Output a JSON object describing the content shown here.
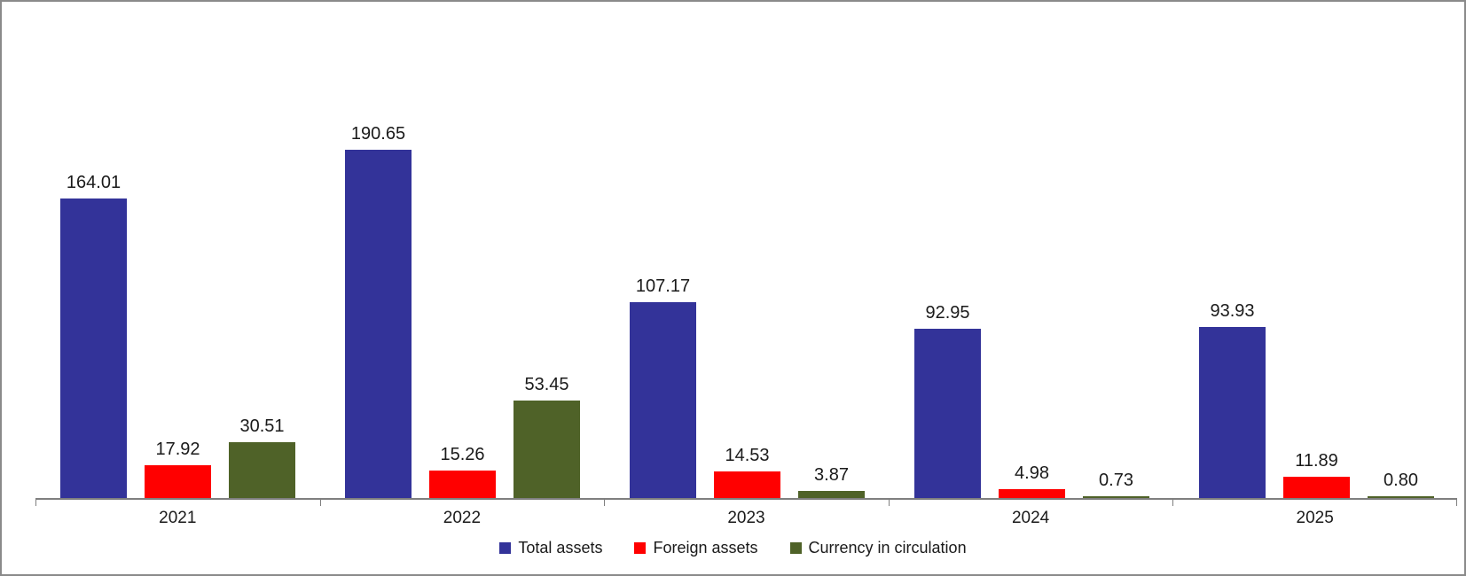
{
  "chart_data": {
    "type": "bar",
    "categories": [
      "2021",
      "2022",
      "2023",
      "2024",
      "2025"
    ],
    "series": [
      {
        "name": "Total assets",
        "color": "#333399",
        "values": [
          164.01,
          190.65,
          107.17,
          92.95,
          93.93
        ],
        "labels": [
          "164.01",
          "190.65",
          "107.17",
          "92.95",
          "93.93"
        ]
      },
      {
        "name": "Foreign assets",
        "color": "#ff0000",
        "values": [
          17.92,
          15.26,
          14.53,
          4.98,
          11.89
        ],
        "labels": [
          "17.92",
          "15.26",
          "14.53",
          "4.98",
          "11.89"
        ]
      },
      {
        "name": "Currency in circulation",
        "color": "#4f6228",
        "values": [
          30.51,
          53.45,
          3.87,
          0.73,
          0.8
        ],
        "labels": [
          "30.51",
          "53.45",
          "3.87",
          "0.73",
          "0.80"
        ]
      }
    ],
    "title": "",
    "xlabel": "",
    "ylabel": "",
    "ylim": [
      0,
      272
    ],
    "value_axis_visible": false,
    "gridlines": false,
    "data_labels": true,
    "legend_position": "bottom",
    "frame_color": "#8a8a8a",
    "axis_color": "#7f7f7f"
  }
}
